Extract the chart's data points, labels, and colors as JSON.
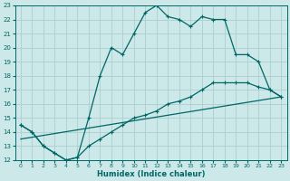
{
  "xlabel": "Humidex (Indice chaleur)",
  "bg_color": "#cce8e8",
  "grid_color": "#aad0d0",
  "line_color": "#006666",
  "xlim": [
    -0.5,
    23.5
  ],
  "ylim": [
    12,
    23
  ],
  "xticks": [
    0,
    1,
    2,
    3,
    4,
    5,
    6,
    7,
    8,
    9,
    10,
    11,
    12,
    13,
    14,
    15,
    16,
    17,
    18,
    19,
    20,
    21,
    22,
    23
  ],
  "yticks": [
    12,
    13,
    14,
    15,
    16,
    17,
    18,
    19,
    20,
    21,
    22,
    23
  ],
  "line1_x": [
    0,
    1,
    2,
    3,
    4,
    5,
    6,
    7,
    8,
    9,
    10,
    11,
    12,
    13,
    14,
    15,
    16,
    17,
    18,
    19,
    20,
    21,
    22,
    23
  ],
  "line1_y": [
    14.5,
    14.0,
    13.0,
    12.5,
    12.0,
    12.2,
    15.0,
    18.0,
    20.0,
    19.5,
    21.0,
    22.5,
    23.0,
    22.2,
    22.0,
    21.5,
    22.2,
    22.0,
    22.0,
    19.5,
    19.5,
    19.0,
    17.0,
    16.5
  ],
  "line2_x": [
    0,
    1,
    2,
    3,
    4,
    5,
    6,
    7,
    8,
    9,
    10,
    11,
    12,
    13,
    14,
    15,
    16,
    17,
    18,
    19,
    20,
    21,
    22,
    23
  ],
  "line2_y": [
    14.5,
    14.0,
    13.0,
    12.5,
    12.0,
    12.2,
    13.0,
    13.5,
    14.0,
    14.5,
    15.0,
    15.2,
    15.5,
    16.0,
    16.2,
    16.5,
    17.0,
    17.5,
    17.5,
    17.5,
    17.5,
    17.2,
    17.0,
    16.5
  ],
  "line3_x": [
    0,
    23
  ],
  "line3_y": [
    13.5,
    16.5
  ]
}
